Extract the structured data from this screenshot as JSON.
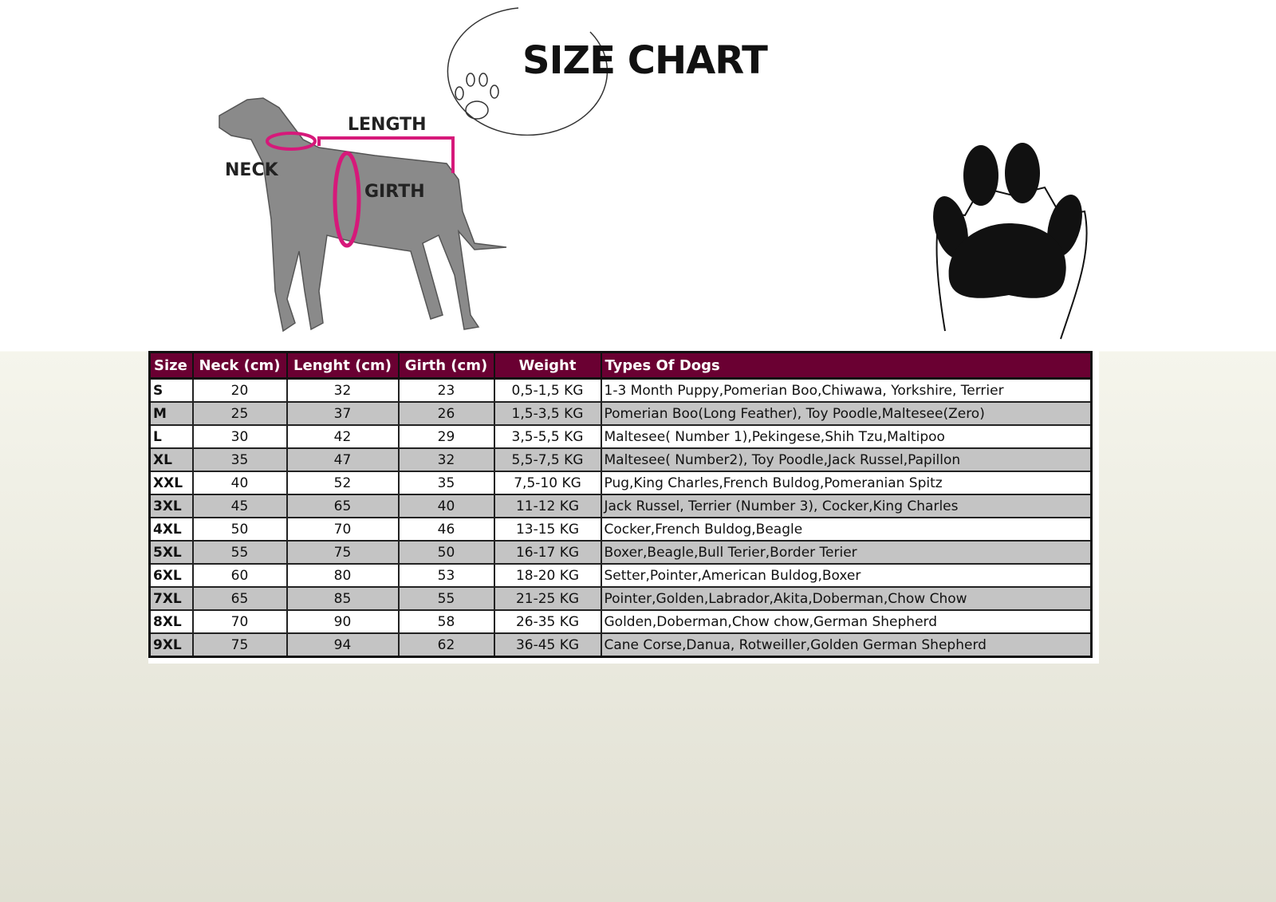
{
  "title": "SIZE CHART",
  "diagram_labels": {
    "length": "LENGTH",
    "neck": "NECK",
    "girth": "GIRTH"
  },
  "colors": {
    "header_bg": "#6a0032",
    "measure_line": "#d6197a",
    "row_alt": "#c4c4c4"
  },
  "icons": [
    "paw-print-icon",
    "dog-illustration",
    "circle-paw-logo"
  ],
  "table": {
    "headers": [
      "Size",
      "Neck (cm)",
      "Lenght (cm)",
      "Girth (cm)",
      "Weight",
      "Types Of Dogs"
    ],
    "rows": [
      [
        "S",
        "20",
        "32",
        "23",
        "0,5-1,5 KG",
        "1-3 Month Puppy,Pomerian Boo,Chiwawa, Yorkshire, Terrier"
      ],
      [
        "M",
        "25",
        "37",
        "26",
        "1,5-3,5 KG",
        "Pomerian Boo(Long Feather), Toy Poodle,Maltesee(Zero)"
      ],
      [
        "L",
        "30",
        "42",
        "29",
        "3,5-5,5 KG",
        "Maltesee( Number 1),Pekingese,Shih Tzu,Maltipoo"
      ],
      [
        "XL",
        "35",
        "47",
        "32",
        "5,5-7,5 KG",
        "Maltesee( Number2), Toy Poodle,Jack Russel,Papillon"
      ],
      [
        "XXL",
        "40",
        "52",
        "35",
        "7,5-10 KG",
        "Pug,King Charles,French Buldog,Pomeranian Spitz"
      ],
      [
        "3XL",
        "45",
        "65",
        "40",
        "11-12 KG",
        "Jack Russel, Terrier (Number 3), Cocker,King Charles"
      ],
      [
        "4XL",
        "50",
        "70",
        "46",
        "13-15 KG",
        "Cocker,French Buldog,Beagle"
      ],
      [
        "5XL",
        "55",
        "75",
        "50",
        "16-17 KG",
        "Boxer,Beagle,Bull Terier,Border Terier"
      ],
      [
        "6XL",
        "60",
        "80",
        "53",
        "18-20 KG",
        "Setter,Pointer,American Buldog,Boxer"
      ],
      [
        "7XL",
        "65",
        "85",
        "55",
        "21-25 KG",
        "Pointer,Golden,Labrador,Akita,Doberman,Chow Chow"
      ],
      [
        "8XL",
        "70",
        "90",
        "58",
        "26-35 KG",
        "Golden,Doberman,Chow chow,German Shepherd"
      ],
      [
        "9XL",
        "75",
        "94",
        "62",
        "36-45 KG",
        "Cane Corse,Danua, Rotweiller,Golden German Shepherd"
      ]
    ]
  }
}
